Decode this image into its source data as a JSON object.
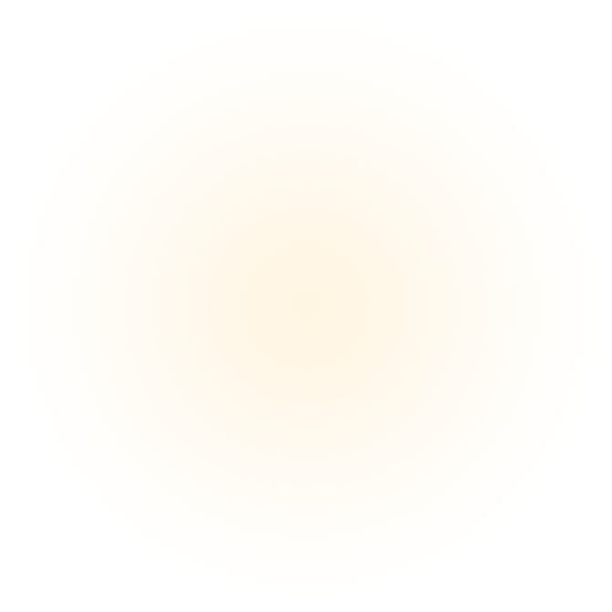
{
  "background": {
    "center_color": "#fff5e2",
    "edge_color": "#ffffff"
  }
}
